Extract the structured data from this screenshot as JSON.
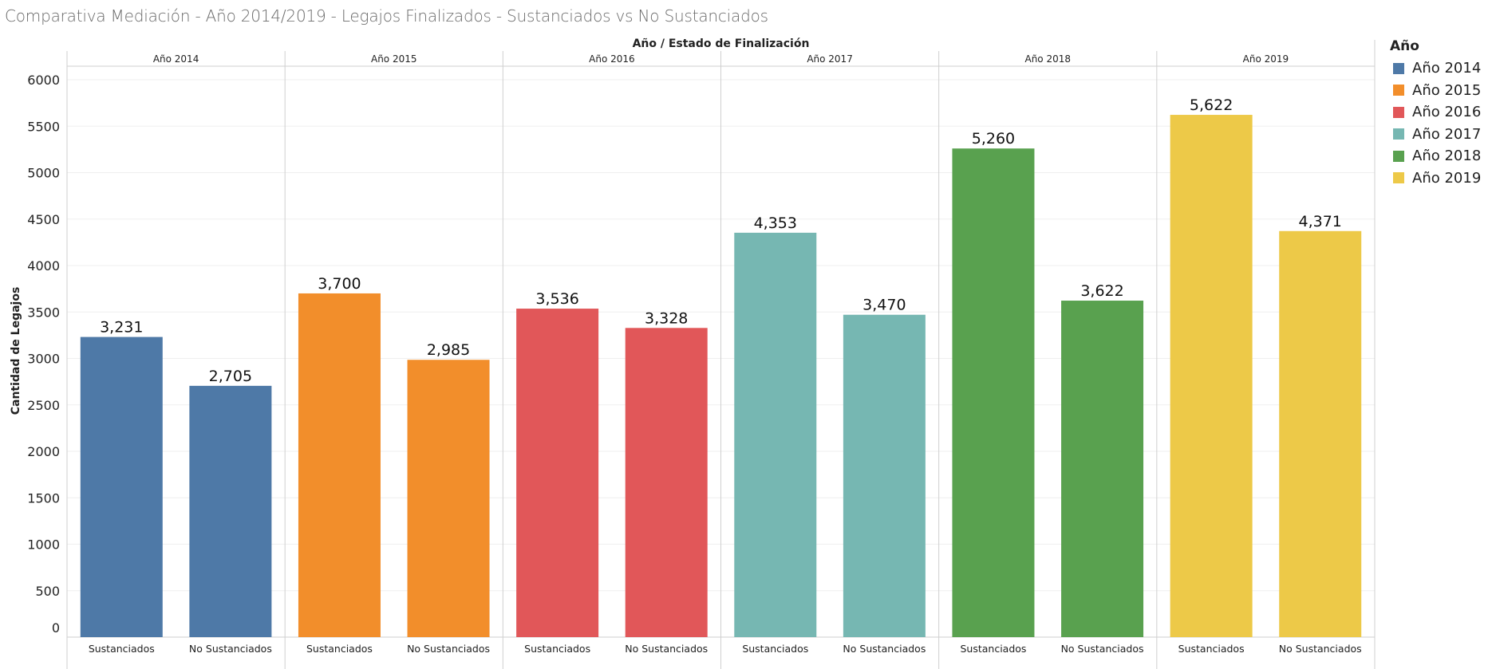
{
  "title": "Comparativa Mediación - Año 2014/2019 - Legajos Finalizados - Sustanciados vs No Sustanciados",
  "chart_data": {
    "type": "bar",
    "title": "Comparativa Mediación - Año 2014/2019 - Legajos Finalizados - Sustanciados vs No Sustanciados",
    "column_header": "Año  /  Estado de Finalización",
    "ylabel": "Cantidad de Legajos",
    "ylim": [
      0,
      6000
    ],
    "yticks": [
      0,
      500,
      1000,
      1500,
      2000,
      2500,
      3000,
      3500,
      4000,
      4500,
      5000,
      5500,
      6000
    ],
    "grid": true,
    "categories": [
      "Sustanciados",
      "No Sustanciados"
    ],
    "panels": [
      {
        "name": "Año 2014",
        "color": "#4e79a7",
        "values": [
          3231,
          2705
        ],
        "labels": [
          "3,231",
          "2,705"
        ]
      },
      {
        "name": "Año 2015",
        "color": "#f28e2b",
        "values": [
          3700,
          2985
        ],
        "labels": [
          "3,700",
          "2,985"
        ]
      },
      {
        "name": "Año 2016",
        "color": "#e15759",
        "values": [
          3536,
          3328
        ],
        "labels": [
          "3,536",
          "3,328"
        ]
      },
      {
        "name": "Año 2017",
        "color": "#76b7b2",
        "values": [
          4353,
          3470
        ],
        "labels": [
          "4,353",
          "3,470"
        ]
      },
      {
        "name": "Año 2018",
        "color": "#59a14f",
        "values": [
          5260,
          3622
        ],
        "labels": [
          "5,260",
          "3,622"
        ]
      },
      {
        "name": "Año 2019",
        "color": "#edc948",
        "values": [
          5622,
          4371
        ],
        "labels": [
          "5,622",
          "4,371"
        ]
      }
    ],
    "legend": {
      "title": "Año",
      "placement": "right"
    }
  }
}
